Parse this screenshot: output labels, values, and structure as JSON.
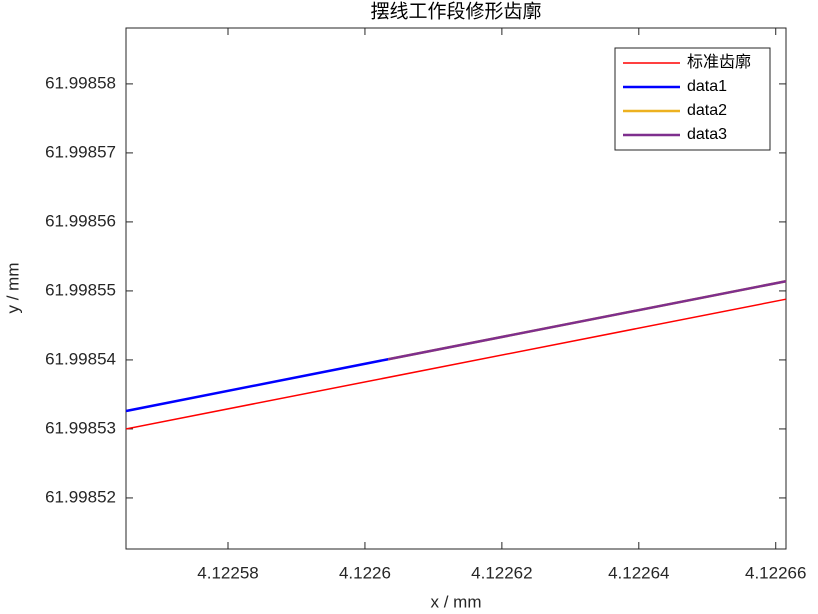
{
  "chart_data": {
    "type": "line",
    "title": "摆线工作段修形齿廓",
    "xlabel": "x / mm",
    "ylabel": "y / mm",
    "xlim": [
      4.1225651,
      4.1226615
    ],
    "ylim": [
      61.9985126,
      61.9985881
    ],
    "xticks": [
      4.12258,
      4.1226,
      4.12262,
      4.12264,
      4.12266
    ],
    "yticks": [
      61.99852,
      61.99853,
      61.99854,
      61.99855,
      61.99856,
      61.99857,
      61.99858
    ],
    "legend": "upper-right",
    "series": [
      {
        "name": "标准齿廓",
        "color": "#ff0000",
        "line_width": 1.5,
        "x": [
          4.1225651,
          4.1226615
        ],
        "values": [
          61.99853,
          61.9985488
        ]
      },
      {
        "name": "data1",
        "color": "#0000ff",
        "line_width": 2.5,
        "x": [
          4.1225651,
          4.1226034
        ],
        "values": [
          61.9985326,
          61.9985401
        ]
      },
      {
        "name": "data2",
        "color": "#edb120",
        "line_width": 2.5,
        "x": [
          4.1226034,
          4.1226615
        ],
        "values": [
          61.9985401,
          61.9985514
        ]
      },
      {
        "name": "data3",
        "color": "#7e2f8e",
        "line_width": 2.5,
        "x": [
          4.1226034,
          4.1226615
        ],
        "values": [
          61.9985401,
          61.9985514
        ]
      }
    ]
  }
}
